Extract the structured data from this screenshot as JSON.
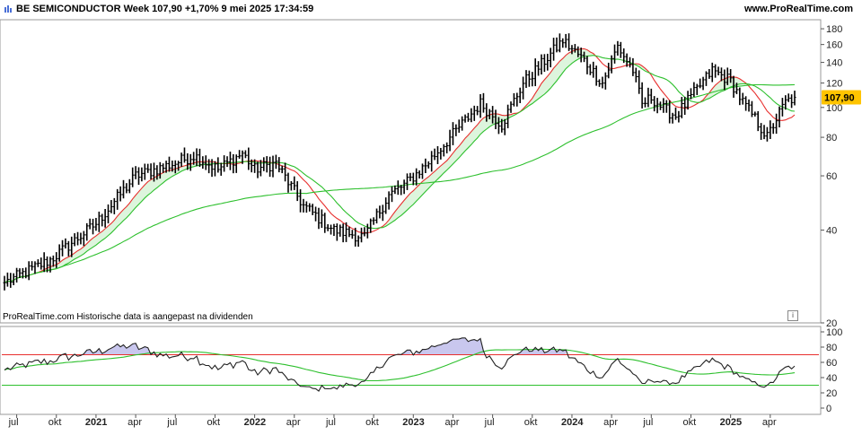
{
  "header": {
    "title": "BE SEMICONDUCTOR Week 107,90 +1,70% 9 mei 2025 17:34:59",
    "source": "www.ProRealTime.com"
  },
  "footnote": "ProRealTime.com  Historische data is aangepast na dividenden",
  "info_button": "i",
  "chart_data": [
    {
      "type": "line",
      "name": "price",
      "style": "weekly OHLC bars with moving averages",
      "last_value_label": "107,90",
      "y_ticks": [
        20,
        40,
        60,
        80,
        100,
        120,
        140,
        160,
        180
      ],
      "ylim": [
        20,
        190
      ],
      "x_tick_labels": [
        "jul",
        "okt",
        "2021",
        "apr",
        "jul",
        "okt",
        "2022",
        "apr",
        "jul",
        "okt",
        "2023",
        "apr",
        "jul",
        "okt",
        "2024",
        "apr",
        "jul",
        "okt",
        "2025",
        "apr"
      ],
      "x_tick_is_year": [
        false,
        false,
        true,
        false,
        false,
        false,
        true,
        false,
        false,
        false,
        true,
        false,
        false,
        false,
        true,
        false,
        false,
        false,
        true,
        false
      ],
      "x_tick_weeks": [
        4,
        17,
        30,
        43,
        56,
        69,
        82,
        95,
        108,
        121,
        134,
        147,
        160,
        173,
        186,
        199,
        212,
        225,
        238,
        251
      ],
      "anchors": {
        "week": [
          0,
          15,
          30,
          43,
          56,
          62,
          70,
          78,
          82,
          89,
          98,
          108,
          118,
          126,
          131,
          138,
          148,
          156,
          163,
          170,
          176,
          183,
          190,
          196,
          201,
          206,
          209,
          212,
          216,
          220,
          225,
          232,
          238,
          242,
          246,
          250,
          253,
          256,
          259
        ],
        "close": [
          27,
          32,
          42,
          60,
          66,
          70,
          63,
          71,
          63,
          66,
          48,
          40,
          38,
          52,
          56,
          65,
          84,
          103,
          88,
          120,
          138,
          165,
          142,
          120,
          158,
          132,
          102,
          108,
          99,
          94,
          108,
          132,
          122,
          104,
          92,
          80,
          92,
          104,
          107.9
        ]
      },
      "series": [
        {
          "name": "",
          "color": "#000000"
        },
        {
          "name": "",
          "color": "#e8302f"
        },
        {
          "name": "",
          "color": "#2ec02e"
        },
        {
          "name": "",
          "color": "#2ec02e"
        }
      ],
      "fill_color": "#ddf5dd",
      "last_value_color": "#ffc400"
    },
    {
      "type": "line",
      "name": "oscillator",
      "y_ticks": [
        0,
        20,
        40,
        60,
        80,
        100
      ],
      "ylim": [
        0,
        105
      ],
      "levels": [
        70,
        30
      ],
      "level_colors": [
        "#e8302f",
        "#2ec02e"
      ],
      "series": [
        {
          "name": "",
          "color": "#222222"
        },
        {
          "name": "",
          "color": "#e8302f"
        },
        {
          "name": "",
          "color": "#2ec02e"
        }
      ],
      "fill_color": "#c9c7ee"
    }
  ],
  "icons": {
    "chart-type-icon": "bar-chart-icon",
    "info-icon": "info-icon"
  }
}
